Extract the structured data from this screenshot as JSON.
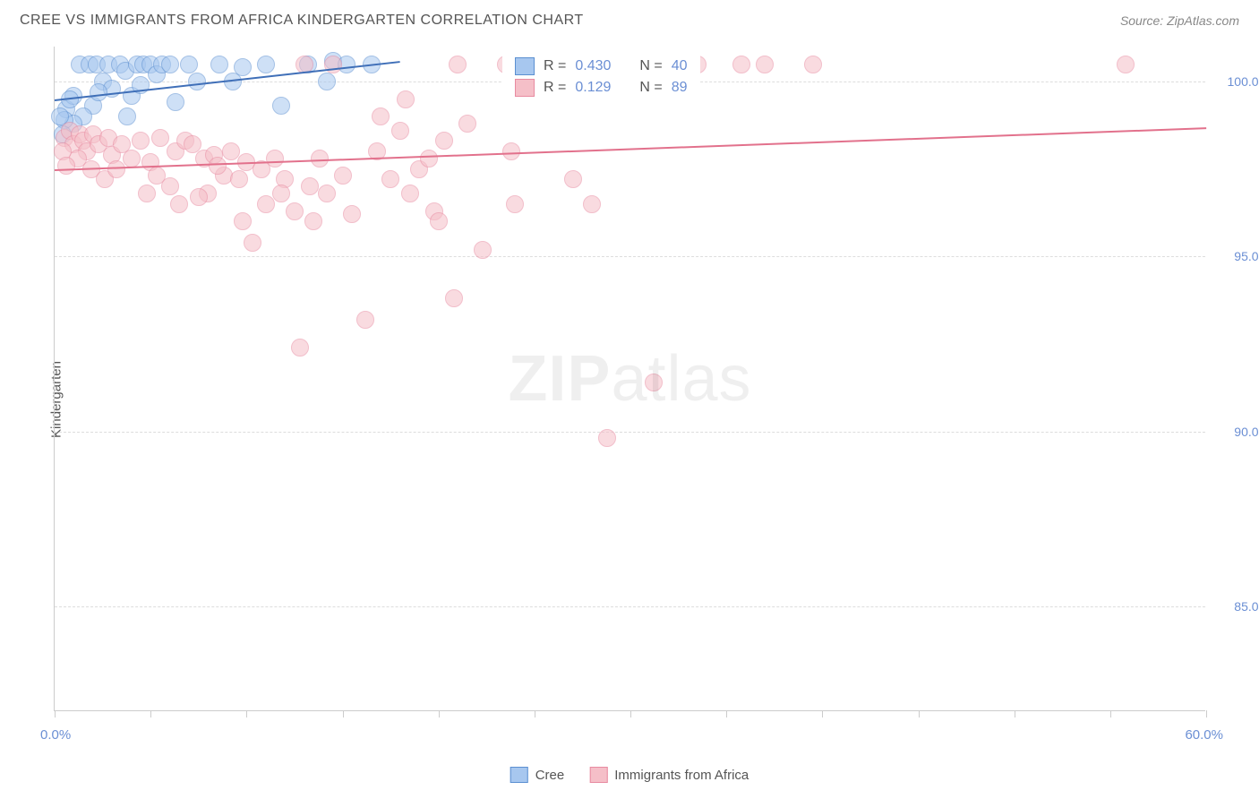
{
  "title": "CREE VS IMMIGRANTS FROM AFRICA KINDERGARTEN CORRELATION CHART",
  "source_label": "Source: ZipAtlas.com",
  "watermark": {
    "left": "ZIP",
    "right": "atlas"
  },
  "y_axis": {
    "title": "Kindergarten"
  },
  "chart": {
    "type": "scatter",
    "xlim": [
      0,
      60
    ],
    "ylim": [
      82,
      101
    ],
    "x_ticks": [
      0,
      5,
      10,
      15,
      20,
      25,
      30,
      35,
      40,
      45,
      50,
      55,
      60
    ],
    "x_tick_labels": {
      "min": "0.0%",
      "max": "60.0%"
    },
    "y_gridlines": [
      85,
      90,
      95,
      100
    ],
    "y_tick_labels": [
      "85.0%",
      "90.0%",
      "95.0%",
      "100.0%"
    ],
    "grid_color": "#dddddd",
    "axis_color": "#cccccc",
    "tick_label_color": "#6b8fd4",
    "background_color": "#ffffff",
    "point_radius": 10,
    "point_border_width": 1.5,
    "trend_line_width": 2,
    "series": [
      {
        "name": "Cree",
        "fill_color": "#a7c7ef",
        "border_color": "#5b8fd1",
        "fill_opacity": 0.55,
        "trend": {
          "x1": 0,
          "y1": 99.5,
          "x2": 18,
          "y2": 100.6,
          "color": "#3f6fb8"
        },
        "points": [
          [
            0.6,
            99.2
          ],
          [
            1.0,
            99.6
          ],
          [
            1.3,
            100.5
          ],
          [
            1.8,
            100.5
          ],
          [
            2.2,
            100.5
          ],
          [
            2.5,
            100.0
          ],
          [
            2.8,
            100.5
          ],
          [
            3.0,
            99.8
          ],
          [
            3.4,
            100.5
          ],
          [
            3.7,
            100.3
          ],
          [
            4.0,
            99.6
          ],
          [
            4.3,
            100.5
          ],
          [
            4.6,
            100.5
          ],
          [
            5.0,
            100.5
          ],
          [
            5.3,
            100.2
          ],
          [
            5.6,
            100.5
          ],
          [
            6.0,
            100.5
          ],
          [
            6.3,
            99.4
          ],
          [
            3.8,
            99.0
          ],
          [
            2.0,
            99.3
          ],
          [
            1.5,
            99.0
          ],
          [
            1.0,
            98.8
          ],
          [
            0.8,
            99.5
          ],
          [
            0.5,
            98.9
          ],
          [
            0.4,
            98.5
          ],
          [
            0.3,
            99.0
          ],
          [
            7.0,
            100.5
          ],
          [
            7.4,
            100.0
          ],
          [
            8.6,
            100.5
          ],
          [
            9.3,
            100.0
          ],
          [
            9.8,
            100.4
          ],
          [
            11.0,
            100.5
          ],
          [
            11.8,
            99.3
          ],
          [
            13.2,
            100.5
          ],
          [
            14.2,
            100.0
          ],
          [
            14.5,
            100.6
          ],
          [
            15.2,
            100.5
          ],
          [
            16.5,
            100.5
          ],
          [
            4.5,
            99.9
          ],
          [
            2.3,
            99.7
          ]
        ]
      },
      {
        "name": "Immigrants from Africa",
        "fill_color": "#f5bfc8",
        "border_color": "#e88aa0",
        "fill_opacity": 0.55,
        "trend": {
          "x1": 0,
          "y1": 97.5,
          "x2": 60,
          "y2": 98.7,
          "color": "#e2718c"
        },
        "points": [
          [
            0.5,
            98.4
          ],
          [
            0.8,
            98.6
          ],
          [
            1.0,
            98.2
          ],
          [
            1.3,
            98.5
          ],
          [
            1.5,
            98.3
          ],
          [
            1.7,
            98.0
          ],
          [
            2.0,
            98.5
          ],
          [
            2.3,
            98.2
          ],
          [
            2.8,
            98.4
          ],
          [
            3.0,
            97.9
          ],
          [
            3.5,
            98.2
          ],
          [
            4.0,
            97.8
          ],
          [
            4.5,
            98.3
          ],
          [
            5.0,
            97.7
          ],
          [
            5.5,
            98.4
          ],
          [
            6.0,
            97.0
          ],
          [
            6.3,
            98.0
          ],
          [
            6.8,
            98.3
          ],
          [
            7.2,
            98.2
          ],
          [
            7.8,
            97.8
          ],
          [
            8.0,
            96.8
          ],
          [
            8.3,
            97.9
          ],
          [
            8.8,
            97.3
          ],
          [
            9.2,
            98.0
          ],
          [
            9.6,
            97.2
          ],
          [
            10.0,
            97.7
          ],
          [
            10.3,
            95.4
          ],
          [
            10.8,
            97.5
          ],
          [
            11.0,
            96.5
          ],
          [
            11.5,
            97.8
          ],
          [
            12.0,
            97.2
          ],
          [
            12.5,
            96.3
          ],
          [
            13.0,
            100.5
          ],
          [
            13.3,
            97.0
          ],
          [
            13.8,
            97.8
          ],
          [
            14.2,
            96.8
          ],
          [
            14.5,
            100.5
          ],
          [
            15.0,
            97.3
          ],
          [
            15.5,
            96.2
          ],
          [
            16.2,
            93.2
          ],
          [
            16.8,
            98.0
          ],
          [
            17.0,
            99.0
          ],
          [
            17.5,
            97.2
          ],
          [
            18.0,
            98.6
          ],
          [
            18.3,
            99.5
          ],
          [
            19.0,
            97.5
          ],
          [
            19.5,
            97.8
          ],
          [
            19.8,
            96.3
          ],
          [
            20.0,
            96.0
          ],
          [
            20.8,
            93.8
          ],
          [
            21.0,
            100.5
          ],
          [
            21.5,
            98.8
          ],
          [
            22.3,
            95.2
          ],
          [
            23.5,
            100.5
          ],
          [
            23.8,
            98.0
          ],
          [
            24.0,
            96.5
          ],
          [
            25.2,
            100.5
          ],
          [
            26.2,
            100.5
          ],
          [
            27.0,
            97.2
          ],
          [
            28.0,
            96.5
          ],
          [
            28.5,
            100.5
          ],
          [
            28.8,
            89.8
          ],
          [
            30.0,
            100.5
          ],
          [
            31.2,
            91.4
          ],
          [
            31.5,
            100.5
          ],
          [
            32.0,
            100.5
          ],
          [
            33.0,
            100.5
          ],
          [
            33.5,
            100.5
          ],
          [
            35.8,
            100.5
          ],
          [
            37.0,
            100.5
          ],
          [
            39.5,
            100.5
          ],
          [
            55.8,
            100.5
          ],
          [
            12.8,
            92.4
          ],
          [
            1.2,
            97.8
          ],
          [
            1.9,
            97.5
          ],
          [
            2.6,
            97.2
          ],
          [
            0.4,
            98.0
          ],
          [
            0.6,
            97.6
          ],
          [
            3.2,
            97.5
          ],
          [
            4.8,
            96.8
          ],
          [
            6.5,
            96.5
          ],
          [
            7.5,
            96.7
          ],
          [
            9.8,
            96.0
          ],
          [
            11.8,
            96.8
          ],
          [
            13.5,
            96.0
          ],
          [
            18.5,
            96.8
          ],
          [
            20.3,
            98.3
          ],
          [
            5.3,
            97.3
          ],
          [
            8.5,
            97.6
          ]
        ]
      }
    ]
  },
  "legend_box": {
    "rows": [
      {
        "swatch_fill": "#a7c7ef",
        "swatch_border": "#5b8fd1",
        "r_label": "R =",
        "r_val": "0.430",
        "n_label": "N =",
        "n_val": "40"
      },
      {
        "swatch_fill": "#f5bfc8",
        "swatch_border": "#e88aa0",
        "r_label": "R =",
        "r_val": "0.129",
        "n_label": "N =",
        "n_val": "89"
      }
    ]
  },
  "bottom_legend": [
    {
      "swatch_fill": "#a7c7ef",
      "swatch_border": "#5b8fd1",
      "label": "Cree"
    },
    {
      "swatch_fill": "#f5bfc8",
      "swatch_border": "#e88aa0",
      "label": "Immigrants from Africa"
    }
  ]
}
